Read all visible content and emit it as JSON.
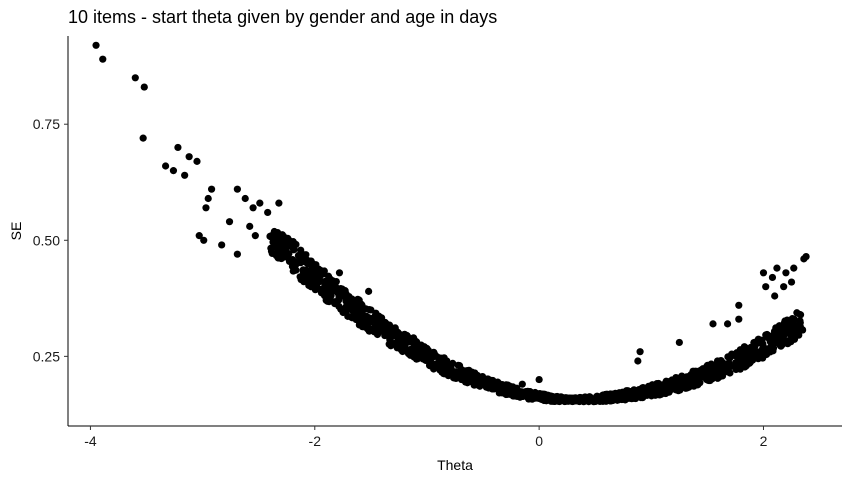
{
  "chart_data": {
    "type": "scatter",
    "title": "10 items - start theta given by gender and age in days",
    "xlabel": "Theta",
    "ylabel": "SE",
    "xlim": [
      -4.2,
      2.7
    ],
    "ylim": [
      0.1,
      0.94
    ],
    "xticks": [
      -4,
      -2,
      0,
      2
    ],
    "xtick_labels": [
      "-4",
      "-2",
      "0",
      "2"
    ],
    "yticks": [
      0.25,
      0.5,
      0.75
    ],
    "ytick_labels": [
      "0.25",
      "0.50",
      "0.75"
    ],
    "grid": false,
    "legend": "none",
    "point_color": "#000000",
    "anchor_points": [
      {
        "x": -3.95,
        "y": 0.92
      },
      {
        "x": -3.89,
        "y": 0.89
      },
      {
        "x": -3.6,
        "y": 0.85
      },
      {
        "x": -3.52,
        "y": 0.83
      },
      {
        "x": -3.53,
        "y": 0.72
      },
      {
        "x": -3.33,
        "y": 0.66
      },
      {
        "x": -3.22,
        "y": 0.7
      },
      {
        "x": -3.12,
        "y": 0.68
      },
      {
        "x": -3.05,
        "y": 0.67
      },
      {
        "x": -3.26,
        "y": 0.65
      },
      {
        "x": -3.16,
        "y": 0.64
      },
      {
        "x": -2.92,
        "y": 0.61
      },
      {
        "x": -2.95,
        "y": 0.59
      },
      {
        "x": -2.97,
        "y": 0.57
      },
      {
        "x": -3.03,
        "y": 0.51
      },
      {
        "x": -2.99,
        "y": 0.5
      },
      {
        "x": -2.83,
        "y": 0.49
      },
      {
        "x": -2.76,
        "y": 0.54
      },
      {
        "x": -2.69,
        "y": 0.61
      },
      {
        "x": -2.62,
        "y": 0.59
      },
      {
        "x": -2.55,
        "y": 0.57
      },
      {
        "x": -2.49,
        "y": 0.58
      },
      {
        "x": -2.42,
        "y": 0.56
      },
      {
        "x": -2.32,
        "y": 0.58
      },
      {
        "x": -2.58,
        "y": 0.53
      },
      {
        "x": -2.53,
        "y": 0.51
      },
      {
        "x": -2.69,
        "y": 0.47
      },
      {
        "x": -2.26,
        "y": 0.47
      },
      {
        "x": -2.23,
        "y": 0.46
      },
      {
        "x": -2.02,
        "y": 0.45
      },
      {
        "x": -1.78,
        "y": 0.43
      },
      {
        "x": -1.52,
        "y": 0.39
      },
      {
        "x": -1.68,
        "y": 0.36
      },
      {
        "x": -1.5,
        "y": 0.35
      },
      {
        "x": -1.12,
        "y": 0.29
      },
      {
        "x": -0.63,
        "y": 0.2
      },
      {
        "x": -0.42,
        "y": 0.18
      },
      {
        "x": -0.3,
        "y": 0.18
      },
      {
        "x": -0.15,
        "y": 0.19
      },
      {
        "x": 0.0,
        "y": 0.2
      },
      {
        "x": 0.9,
        "y": 0.26
      },
      {
        "x": 0.88,
        "y": 0.24
      },
      {
        "x": 1.25,
        "y": 0.28
      },
      {
        "x": 1.55,
        "y": 0.32
      },
      {
        "x": 1.68,
        "y": 0.32
      },
      {
        "x": 1.78,
        "y": 0.33
      },
      {
        "x": 1.78,
        "y": 0.36
      },
      {
        "x": 2.0,
        "y": 0.43
      },
      {
        "x": 2.08,
        "y": 0.42
      },
      {
        "x": 2.12,
        "y": 0.44
      },
      {
        "x": 2.2,
        "y": 0.43
      },
      {
        "x": 2.27,
        "y": 0.44
      },
      {
        "x": 2.36,
        "y": 0.46
      },
      {
        "x": 2.38,
        "y": 0.465
      },
      {
        "x": 2.02,
        "y": 0.4
      },
      {
        "x": 2.1,
        "y": 0.38
      },
      {
        "x": 2.18,
        "y": 0.4
      },
      {
        "x": 2.25,
        "y": 0.41
      }
    ],
    "curve": {
      "x_range": [
        -2.4,
        2.35
      ],
      "minimum": {
        "x": 0.3,
        "y": 0.155
      }
    }
  }
}
